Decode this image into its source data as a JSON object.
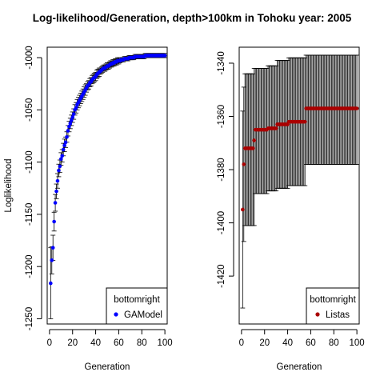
{
  "chart_data": [
    {
      "type": "scatter",
      "title": "Log-likelihood/Generation, depth>100km in Tohoku year: 2005",
      "xlabel": "Generation",
      "ylabel": "Loglikelihood",
      "xlim": [
        -2,
        102
      ],
      "ylim": [
        -1255,
        -990
      ],
      "x_ticks": [
        0,
        20,
        40,
        60,
        80,
        100
      ],
      "y_ticks": [
        -1250,
        -1200,
        -1150,
        -1100,
        -1050,
        -1000
      ],
      "legend": {
        "title": "bottomright",
        "entries": [
          {
            "label": "GAModel",
            "color": "#0000ff"
          }
        ],
        "position": "bottomright"
      },
      "series": [
        {
          "name": "GAModel",
          "color": "#0000ff",
          "x": [
            1,
            2,
            3,
            4,
            5,
            6,
            7,
            8,
            9,
            10,
            11,
            12,
            13,
            14,
            15,
            16,
            17,
            18,
            19,
            20,
            21,
            22,
            23,
            24,
            25,
            26,
            27,
            28,
            29,
            30,
            31,
            32,
            33,
            34,
            35,
            36,
            37,
            38,
            39,
            40,
            41,
            42,
            43,
            44,
            45,
            46,
            47,
            48,
            49,
            50,
            51,
            52,
            53,
            54,
            55,
            56,
            57,
            58,
            59,
            60,
            61,
            62,
            63,
            64,
            65,
            66,
            67,
            68,
            69,
            70,
            71,
            72,
            73,
            74,
            75,
            76,
            77,
            78,
            79,
            80,
            81,
            82,
            83,
            84,
            85,
            86,
            87,
            88,
            89,
            90,
            91,
            92,
            93,
            94,
            95,
            96,
            97,
            98,
            99,
            100
          ],
          "y": [
            -1216,
            -1194,
            -1182,
            -1157,
            -1139,
            -1128,
            -1118,
            -1108,
            -1104,
            -1097,
            -1094,
            -1088,
            -1084,
            -1081,
            -1076,
            -1070,
            -1066,
            -1063,
            -1060,
            -1057,
            -1054,
            -1050,
            -1048,
            -1045,
            -1043,
            -1041,
            -1039,
            -1037,
            -1035,
            -1033,
            -1031,
            -1029,
            -1027,
            -1026,
            -1024,
            -1023,
            -1021,
            -1020,
            -1019,
            -1018,
            -1016,
            -1015,
            -1014,
            -1013,
            -1012,
            -1011,
            -1010,
            -1010,
            -1009,
            -1008,
            -1008,
            -1007,
            -1006,
            -1006,
            -1005,
            -1005,
            -1004,
            -1004,
            -1003,
            -1003,
            -1003,
            -1002,
            -1002,
            -1002,
            -1001,
            -1001,
            -1001,
            -1001,
            -1000,
            -1000,
            -1000,
            -1000,
            -1000,
            -999,
            -999,
            -999,
            -999,
            -999,
            -999,
            -999,
            -999,
            -999,
            -998,
            -998,
            -998,
            -998,
            -998,
            -998,
            -998,
            -998,
            -998,
            -998,
            -998,
            -998,
            -998,
            -998,
            -998,
            -998,
            -998,
            -998
          ],
          "err": [
            34,
            13,
            12,
            9,
            8,
            7,
            7,
            6,
            6,
            6,
            6,
            6,
            6,
            5,
            5,
            5,
            5,
            5,
            5,
            5,
            5,
            5,
            5,
            5,
            5,
            5,
            5,
            5,
            5,
            5,
            5,
            4,
            4,
            4,
            4,
            4,
            4,
            4,
            4,
            4,
            4,
            4,
            4,
            3,
            3,
            3,
            3,
            3,
            3,
            3,
            3,
            3,
            3,
            3,
            3,
            3,
            3,
            3,
            3,
            3,
            2,
            2,
            2,
            2,
            2,
            2,
            2,
            2,
            2,
            2,
            2,
            2,
            2,
            2,
            2,
            2,
            2,
            2,
            2,
            2,
            2,
            2,
            2,
            2,
            2,
            2,
            2,
            2,
            2,
            2,
            2,
            2,
            2,
            2,
            2,
            2,
            2,
            2,
            2,
            2
          ]
        }
      ]
    },
    {
      "type": "scatter",
      "xlabel": "Generation",
      "ylabel": "",
      "xlim": [
        -2,
        102
      ],
      "ylim": [
        -1438,
        -1334
      ],
      "x_ticks": [
        0,
        20,
        40,
        60,
        80,
        100
      ],
      "y_ticks": [
        -1420,
        -1400,
        -1380,
        -1360,
        -1340
      ],
      "legend": {
        "title": "bottomright",
        "entries": [
          {
            "label": "Listas",
            "color": "#aa0000"
          }
        ],
        "position": "bottomright"
      },
      "series": [
        {
          "name": "Listas",
          "color": "#aa0000",
          "x": [
            1,
            2,
            3,
            4,
            5,
            6,
            7,
            8,
            9,
            10,
            11,
            12,
            13,
            14,
            15,
            16,
            17,
            18,
            19,
            20,
            21,
            22,
            23,
            24,
            25,
            26,
            27,
            28,
            29,
            30,
            31,
            32,
            33,
            34,
            35,
            36,
            37,
            38,
            39,
            40,
            41,
            42,
            43,
            44,
            45,
            46,
            47,
            48,
            49,
            50,
            51,
            52,
            53,
            54,
            55,
            56,
            57,
            58,
            59,
            60,
            61,
            62,
            63,
            64,
            65,
            66,
            67,
            68,
            69,
            70,
            71,
            72,
            73,
            74,
            75,
            76,
            77,
            78,
            79,
            80,
            81,
            82,
            83,
            84,
            85,
            86,
            87,
            88,
            89,
            90,
            91,
            92,
            93,
            94,
            95,
            96,
            97,
            98,
            99,
            100
          ],
          "y": [
            -1395,
            -1378,
            -1372,
            -1372,
            -1372,
            -1372,
            -1372,
            -1372,
            -1372,
            -1372,
            -1369,
            -1365,
            -1365,
            -1365,
            -1365,
            -1365,
            -1365,
            -1365,
            -1365,
            -1365,
            -1365,
            -1365,
            -1364.5,
            -1364.5,
            -1364.5,
            -1364.5,
            -1364.5,
            -1364.5,
            -1364.5,
            -1364.5,
            -1363,
            -1363,
            -1363,
            -1363,
            -1363,
            -1363,
            -1363,
            -1363,
            -1363,
            -1363,
            -1362,
            -1362,
            -1362,
            -1362,
            -1362,
            -1362,
            -1362,
            -1362,
            -1362,
            -1362,
            -1362,
            -1362,
            -1362,
            -1362,
            -1362,
            -1357,
            -1357,
            -1357,
            -1357,
            -1357,
            -1357,
            -1357,
            -1357,
            -1357,
            -1357,
            -1357,
            -1357,
            -1357,
            -1357,
            -1357,
            -1357,
            -1357,
            -1357,
            -1357,
            -1357,
            -1357,
            -1357,
            -1357,
            -1357,
            -1357,
            -1357,
            -1357,
            -1357,
            -1357,
            -1357,
            -1357,
            -1357,
            -1357,
            -1357,
            -1357,
            -1357,
            -1357,
            -1357,
            -1357,
            -1357,
            -1357,
            -1357,
            -1357,
            -1357,
            -1357
          ],
          "lo": [
            -1432,
            -1407,
            -1401,
            -1401,
            -1401,
            -1401,
            -1401,
            -1401,
            -1401,
            -1401,
            -1401,
            -1389,
            -1389,
            -1389,
            -1389,
            -1389,
            -1389,
            -1389,
            -1389,
            -1389,
            -1389,
            -1389,
            -1388,
            -1388,
            -1388,
            -1388,
            -1388,
            -1388,
            -1388,
            -1388,
            -1387,
            -1387,
            -1387,
            -1387,
            -1387,
            -1387,
            -1387,
            -1387,
            -1387,
            -1387,
            -1386,
            -1386,
            -1386,
            -1386,
            -1386,
            -1386,
            -1386,
            -1386,
            -1386,
            -1386,
            -1386,
            -1386,
            -1386,
            -1386,
            -1386,
            -1378,
            -1378,
            -1378,
            -1378,
            -1378,
            -1378,
            -1378,
            -1378,
            -1378,
            -1378,
            -1378,
            -1378,
            -1378,
            -1378,
            -1378,
            -1378,
            -1378,
            -1378,
            -1378,
            -1378,
            -1378,
            -1378,
            -1378,
            -1378,
            -1378,
            -1378,
            -1378,
            -1378,
            -1378,
            -1378,
            -1378,
            -1378,
            -1378,
            -1378,
            -1378,
            -1378,
            -1378,
            -1378,
            -1378,
            -1378,
            -1378,
            -1378,
            -1378,
            -1378,
            -1378
          ],
          "hi": [
            -1358,
            -1349,
            -1344,
            -1344,
            -1344,
            -1344,
            -1344,
            -1344,
            -1344,
            -1344,
            -1342,
            -1342,
            -1342,
            -1342,
            -1342,
            -1342,
            -1342,
            -1342,
            -1342,
            -1342,
            -1342,
            -1342,
            -1341,
            -1341,
            -1341,
            -1341,
            -1341,
            -1341,
            -1341,
            -1341,
            -1339,
            -1339,
            -1339,
            -1339,
            -1339,
            -1339,
            -1339,
            -1339,
            -1339,
            -1339,
            -1338,
            -1338,
            -1338,
            -1338,
            -1338,
            -1338,
            -1338,
            -1338,
            -1338,
            -1338,
            -1338,
            -1338,
            -1338,
            -1338,
            -1338,
            -1337,
            -1337,
            -1337,
            -1337,
            -1337,
            -1337,
            -1337,
            -1337,
            -1337,
            -1337,
            -1337,
            -1337,
            -1337,
            -1337,
            -1337,
            -1337,
            -1337,
            -1337,
            -1337,
            -1337,
            -1337,
            -1337,
            -1337,
            -1337,
            -1337,
            -1337,
            -1337,
            -1337,
            -1337,
            -1337,
            -1337,
            -1337,
            -1337,
            -1337,
            -1337,
            -1337,
            -1337,
            -1337,
            -1337,
            -1337,
            -1337,
            -1337,
            -1337,
            -1337,
            -1337
          ]
        }
      ]
    }
  ]
}
